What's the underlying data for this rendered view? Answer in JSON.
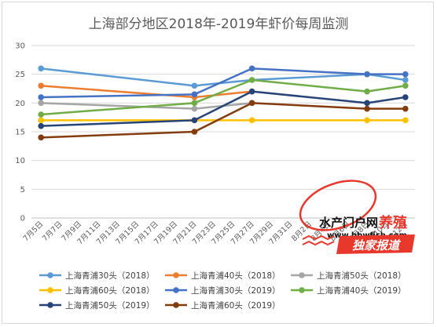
{
  "chart_data": {
    "type": "line",
    "title": "上海部分地区2018年-2019年虾价每周监测",
    "ylim": [
      0,
      30
    ],
    "yticks": [
      0,
      5,
      10,
      15,
      20,
      25,
      30
    ],
    "grid": true,
    "legend_position": "bottom",
    "categories": [
      "7月5日",
      "7月7日",
      "7月9日",
      "7月11日",
      "7月13日",
      "7月15日",
      "7月17日",
      "7月19日",
      "7月21日",
      "7月23日",
      "7月25日",
      "7月27日",
      "7月29日",
      "7月31日",
      "8月2日",
      "8月4日",
      "8月6日",
      "8月8日",
      "8月10日",
      "8月12日"
    ],
    "series": [
      {
        "name": "上海青浦30头（2018）",
        "color": "#5b9bd5",
        "points": [
          [
            0,
            26
          ],
          [
            8,
            23
          ],
          [
            11,
            24
          ],
          [
            17,
            25
          ],
          [
            19,
            24
          ]
        ]
      },
      {
        "name": "上海青浦40头（2018）",
        "color": "#ed7d31",
        "points": [
          [
            0,
            23
          ],
          [
            8,
            21
          ],
          [
            11,
            22
          ]
        ]
      },
      {
        "name": "上海青浦50头（2018）",
        "color": "#a5a5a5",
        "points": [
          [
            0,
            20
          ],
          [
            8,
            19
          ],
          [
            11,
            20
          ]
        ]
      },
      {
        "name": "上海青浦60头（2018）",
        "color": "#ffc000",
        "points": [
          [
            0,
            17
          ],
          [
            8,
            17
          ],
          [
            11,
            17
          ],
          [
            17,
            17
          ],
          [
            19,
            17
          ]
        ]
      },
      {
        "name": "上海青浦30头（2019）",
        "color": "#4472c4",
        "points": [
          [
            0,
            21
          ],
          [
            8,
            21.5
          ],
          [
            11,
            26
          ],
          [
            17,
            25
          ],
          [
            19,
            25
          ]
        ]
      },
      {
        "name": "上海青浦40头（2019）",
        "color": "#70ad47",
        "points": [
          [
            0,
            18
          ],
          [
            8,
            20
          ],
          [
            11,
            24
          ],
          [
            17,
            22
          ],
          [
            19,
            23
          ]
        ]
      },
      {
        "name": "上海青浦50头（2019）",
        "color": "#264478",
        "points": [
          [
            0,
            16
          ],
          [
            8,
            17
          ],
          [
            11,
            22
          ],
          [
            17,
            20
          ],
          [
            19,
            21
          ]
        ]
      },
      {
        "name": "上海青浦60头（2019）",
        "color": "#843c0c",
        "points": [
          [
            0,
            14
          ],
          [
            8,
            15
          ],
          [
            11,
            20
          ],
          [
            17,
            19
          ],
          [
            19,
            19
          ]
        ]
      }
    ]
  },
  "watermark": {
    "brand_text": "水产门户网",
    "brand_red": "养殖",
    "url": "www.bbwfish.com",
    "banner": "独家报道"
  }
}
